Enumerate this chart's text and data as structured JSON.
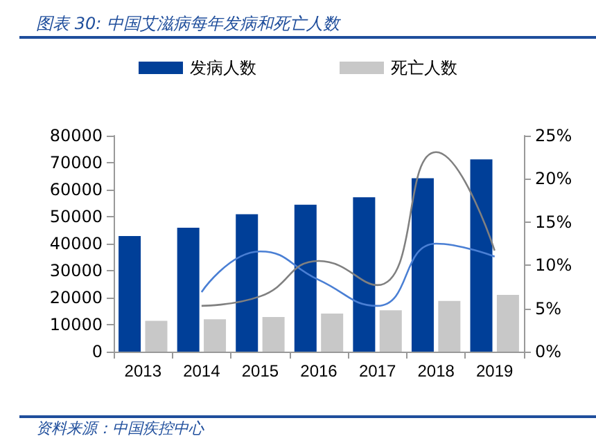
{
  "chart_data": {
    "type": "bar",
    "title": "图表 30:  中国艾滋病每年发病和死亡人数",
    "annotations": [
      "资料来源：中国疾控中心"
    ],
    "categories": [
      "2013",
      "2014",
      "2015",
      "2016",
      "2017",
      "2018",
      "2019"
    ],
    "series": [
      {
        "name": "发病人数",
        "color": "#003f98",
        "values": [
          42800,
          45900,
          50900,
          54400,
          57200,
          64200,
          71200
        ]
      },
      {
        "name": "死亡人数",
        "color": "#c8c8c8",
        "values": [
          11400,
          12000,
          12800,
          14100,
          15300,
          18800,
          21000
        ]
      },
      {
        "type": "line",
        "axis": "y2",
        "color": "#4a7fd4",
        "values": [
          null,
          6.9,
          11.6,
          8.3,
          5.3,
          12.5,
          11.0
        ]
      },
      {
        "type": "line",
        "axis": "y2",
        "color": "#808080",
        "values": [
          null,
          5.3,
          6.4,
          10.5,
          7.7,
          23.1,
          11.7
        ]
      }
    ],
    "ylim": [
      0,
      80000
    ],
    "yticks": [
      0,
      10000,
      20000,
      30000,
      40000,
      50000,
      60000,
      70000,
      80000
    ],
    "y2lim": [
      0,
      25
    ],
    "y2ticks": [
      {
        "value": 0,
        "label": "0%"
      },
      {
        "value": 5,
        "label": "5%"
      },
      {
        "value": 10,
        "label": "10%"
      },
      {
        "value": 15,
        "label": "15%"
      },
      {
        "value": 20,
        "label": "20%"
      },
      {
        "value": 25,
        "label": "25%"
      }
    ],
    "legend": "top",
    "grid": false,
    "marker": "none",
    "line_style": "solid"
  }
}
